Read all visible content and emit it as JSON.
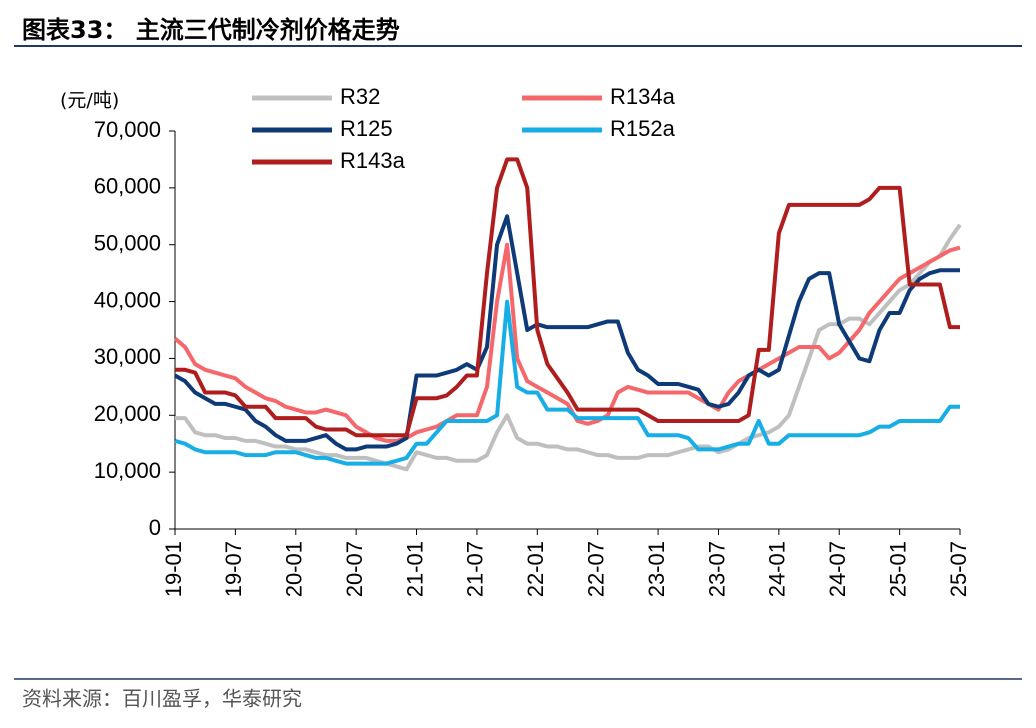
{
  "chart_data": {
    "type": "line",
    "title": "图表33： 主流三代制冷剂价格走势",
    "y_label": "(元/吨)",
    "source": "资料来源：百川盈孚，华泰研究",
    "categories": [
      "19-01",
      null,
      null,
      null,
      null,
      null,
      "19-07",
      null,
      null,
      null,
      null,
      null,
      "20-01",
      null,
      null,
      null,
      null,
      null,
      "20-07",
      null,
      null,
      null,
      null,
      null,
      "21-01",
      null,
      null,
      null,
      null,
      null,
      "21-07",
      null,
      null,
      null,
      null,
      null,
      "22-01",
      null,
      null,
      null,
      null,
      null,
      "22-07",
      null,
      null,
      null,
      null,
      null,
      "23-01",
      null,
      null,
      null,
      null,
      null,
      "23-07",
      null,
      null,
      null,
      null,
      null,
      "24-01",
      null,
      null,
      null,
      null,
      null,
      "24-07",
      null,
      null,
      null,
      null,
      null,
      "25-01",
      null,
      null,
      null,
      null,
      null,
      "25-07"
    ],
    "ylim": [
      0,
      70000
    ],
    "yticks": [
      0,
      {
        "value": 10000,
        "label": "10,000"
      },
      {
        "value": 20000,
        "label": "20,000"
      },
      {
        "value": 30000,
        "label": "30,000"
      },
      {
        "value": 40000,
        "label": "40,000"
      },
      {
        "value": 50000,
        "label": "50,000"
      },
      {
        "value": 60000,
        "label": "60,000"
      },
      {
        "value": 70000,
        "label": "70,000"
      }
    ],
    "grid": false,
    "legend": "top",
    "series": [
      {
        "name": "R32",
        "color": "#bfbfbf",
        "values": [
          19500,
          19500,
          17000,
          16500,
          16500,
          16000,
          16000,
          15500,
          15500,
          15000,
          14500,
          14500,
          14000,
          14000,
          13500,
          13000,
          13000,
          12500,
          12500,
          12500,
          12000,
          11500,
          11000,
          10500,
          13500,
          13000,
          12500,
          12500,
          12000,
          12000,
          12000,
          13000,
          17000,
          20000,
          16000,
          15000,
          15000,
          14500,
          14500,
          14000,
          14000,
          13500,
          13000,
          13000,
          12500,
          12500,
          12500,
          13000,
          13000,
          13000,
          13500,
          14000,
          14500,
          14500,
          13500,
          14000,
          15000,
          16000,
          16500,
          17000,
          18000,
          20000,
          25000,
          30000,
          35000,
          36000,
          36000,
          37000,
          37000,
          36000,
          38000,
          40000,
          42000,
          43000,
          45000,
          47000,
          48000,
          51000,
          53500
        ]
      },
      {
        "name": "R134a",
        "color": "#f4686b",
        "values": [
          33500,
          32000,
          29000,
          28000,
          27500,
          27000,
          26500,
          25000,
          24000,
          23000,
          22500,
          21500,
          21000,
          20500,
          20500,
          21000,
          20500,
          20000,
          18000,
          17000,
          16000,
          15500,
          15500,
          16000,
          17000,
          17500,
          18000,
          19000,
          20000,
          20000,
          20000,
          25000,
          40000,
          50000,
          30000,
          26000,
          25000,
          24000,
          23000,
          22000,
          19000,
          18500,
          19000,
          20000,
          24000,
          25000,
          24500,
          24000,
          24000,
          24000,
          24000,
          24000,
          23000,
          22000,
          21000,
          24000,
          26000,
          27000,
          28000,
          29000,
          30000,
          31000,
          32000,
          32000,
          32000,
          30000,
          31000,
          33000,
          35000,
          38000,
          40000,
          42000,
          44000,
          45000,
          46000,
          47000,
          48000,
          49000,
          49500
        ]
      },
      {
        "name": "R125",
        "color": "#0e3a78",
        "values": [
          27000,
          26000,
          24000,
          23000,
          22000,
          22000,
          21500,
          21000,
          19000,
          18000,
          16500,
          15500,
          15500,
          15500,
          16000,
          16500,
          15000,
          14000,
          14000,
          14500,
          14500,
          14500,
          15000,
          16000,
          27000,
          27000,
          27000,
          27500,
          28000,
          29000,
          28000,
          32000,
          50000,
          55000,
          45000,
          35000,
          36000,
          35500,
          35500,
          35500,
          35500,
          35500,
          36000,
          36500,
          36500,
          31000,
          28000,
          27000,
          25500,
          25500,
          25500,
          25000,
          24500,
          22000,
          21500,
          22000,
          24000,
          27000,
          28000,
          27000,
          28000,
          34000,
          40000,
          44000,
          45000,
          45000,
          36000,
          33000,
          30000,
          29500,
          35000,
          38000,
          38000,
          42000,
          44000,
          45000,
          45500,
          45500,
          45500
        ]
      },
      {
        "name": "R152a",
        "color": "#17aee6",
        "values": [
          15500,
          15000,
          14000,
          13500,
          13500,
          13500,
          13500,
          13000,
          13000,
          13000,
          13500,
          13500,
          13500,
          13000,
          12500,
          12500,
          12000,
          11500,
          11500,
          11500,
          11500,
          11500,
          12000,
          12500,
          15000,
          15000,
          17000,
          19000,
          19000,
          19000,
          19000,
          19000,
          20000,
          40000,
          25000,
          24000,
          24000,
          21000,
          21000,
          21000,
          19500,
          19500,
          19500,
          19500,
          19500,
          19500,
          19500,
          16500,
          16500,
          16500,
          16500,
          16000,
          14000,
          14000,
          14000,
          14500,
          15000,
          15000,
          19000,
          15000,
          15000,
          16500,
          16500,
          16500,
          16500,
          16500,
          16500,
          16500,
          16500,
          17000,
          18000,
          18000,
          19000,
          19000,
          19000,
          19000,
          19000,
          21500,
          21500
        ]
      },
      {
        "name": "R143a",
        "color": "#b01d1d",
        "values": [
          28000,
          28000,
          27500,
          24000,
          24000,
          24000,
          23500,
          21500,
          21500,
          21500,
          19500,
          19500,
          19500,
          19500,
          18000,
          17500,
          17500,
          17500,
          16500,
          16500,
          16500,
          16500,
          16500,
          16500,
          23000,
          23000,
          23000,
          23500,
          25000,
          27000,
          27000,
          45000,
          60000,
          65000,
          65000,
          60000,
          35000,
          29000,
          26500,
          24000,
          21000,
          21000,
          21000,
          21000,
          21000,
          21000,
          21000,
          20000,
          19000,
          19000,
          19000,
          19000,
          19000,
          19000,
          19000,
          19000,
          19000,
          20000,
          31500,
          31500,
          52000,
          57000,
          57000,
          57000,
          57000,
          57000,
          57000,
          57000,
          57000,
          58000,
          60000,
          60000,
          60000,
          43000,
          43000,
          43000,
          43000,
          35500,
          35500
        ]
      }
    ]
  }
}
